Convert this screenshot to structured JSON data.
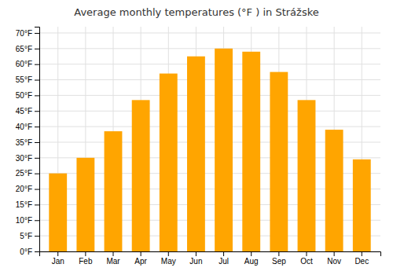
{
  "chart_data": {
    "type": "bar",
    "title": "Average monthly temperatures (°F ) in Strážske",
    "categories": [
      "Jan",
      "Feb",
      "Mar",
      "Apr",
      "May",
      "Jun",
      "Jul",
      "Aug",
      "Sep",
      "Oct",
      "Nov",
      "Dec"
    ],
    "values": [
      25,
      30,
      38.5,
      48.5,
      57,
      62.5,
      65,
      64,
      57.5,
      48.5,
      39,
      29.5
    ],
    "color": "#FFA500",
    "ylim": [
      0,
      72
    ],
    "yticks": [
      {
        "value": 0,
        "label": "0°F"
      },
      {
        "value": 5,
        "label": "5°F"
      },
      {
        "value": 10,
        "label": "10°F"
      },
      {
        "value": 15,
        "label": "15°F"
      },
      {
        "value": 20,
        "label": "20°F"
      },
      {
        "value": 25,
        "label": "25°F"
      },
      {
        "value": 30,
        "label": "30°F"
      },
      {
        "value": 35,
        "label": "35°F"
      },
      {
        "value": 40,
        "label": "40°F"
      },
      {
        "value": 45,
        "label": "45°F"
      },
      {
        "value": 50,
        "label": "50°F"
      },
      {
        "value": 55,
        "label": "55°F"
      },
      {
        "value": 60,
        "label": "60°F"
      },
      {
        "value": 65,
        "label": "65°F"
      },
      {
        "value": 70,
        "label": "70°F"
      }
    ],
    "grid": true
  }
}
